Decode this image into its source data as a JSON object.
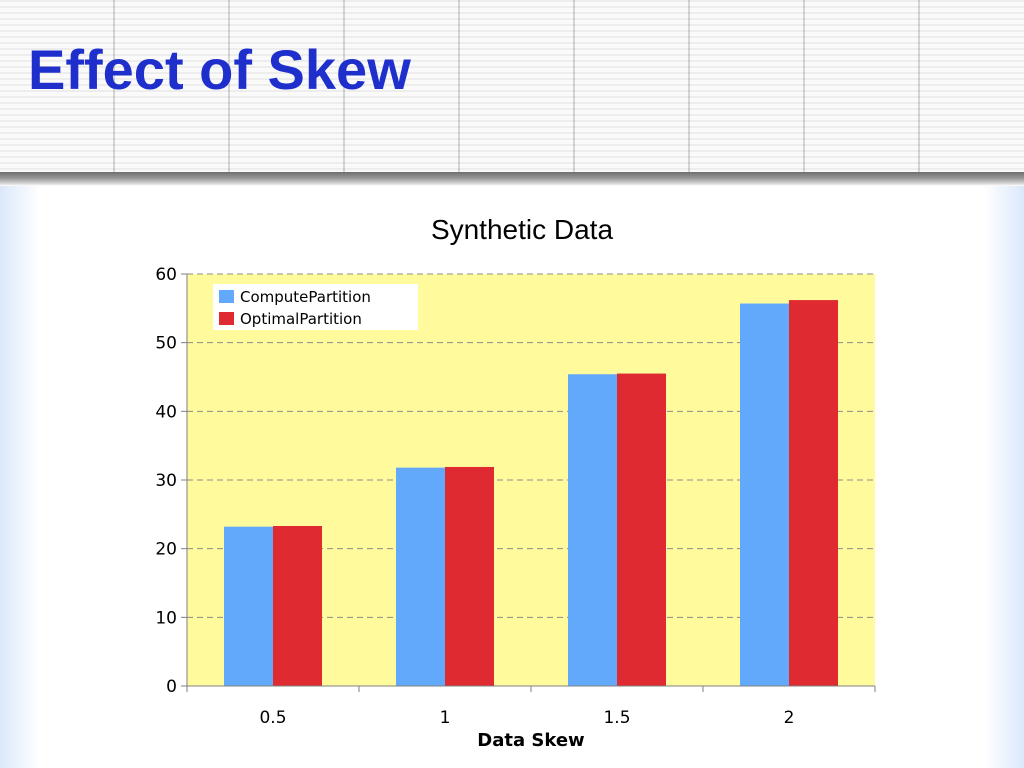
{
  "slide": {
    "title": "Effect of Skew"
  },
  "chart_data": {
    "type": "bar",
    "title": "Synthetic Data",
    "xlabel": "Data Skew",
    "ylabel": "",
    "categories": [
      "0.5",
      "1",
      "1.5",
      "2"
    ],
    "series": [
      {
        "name": "ComputePartition",
        "values": [
          23.2,
          31.8,
          45.4,
          55.7
        ],
        "color": "#62a8fb"
      },
      {
        "name": "OptimalPartition",
        "values": [
          23.3,
          31.9,
          45.5,
          56.2
        ],
        "color": "#de2a30"
      }
    ],
    "ylim": [
      0,
      60
    ],
    "yticks": [
      0,
      10,
      20,
      30,
      40,
      50,
      60
    ],
    "grid": true,
    "legend_position": "top-left",
    "plot_background": "#fffb9c"
  }
}
